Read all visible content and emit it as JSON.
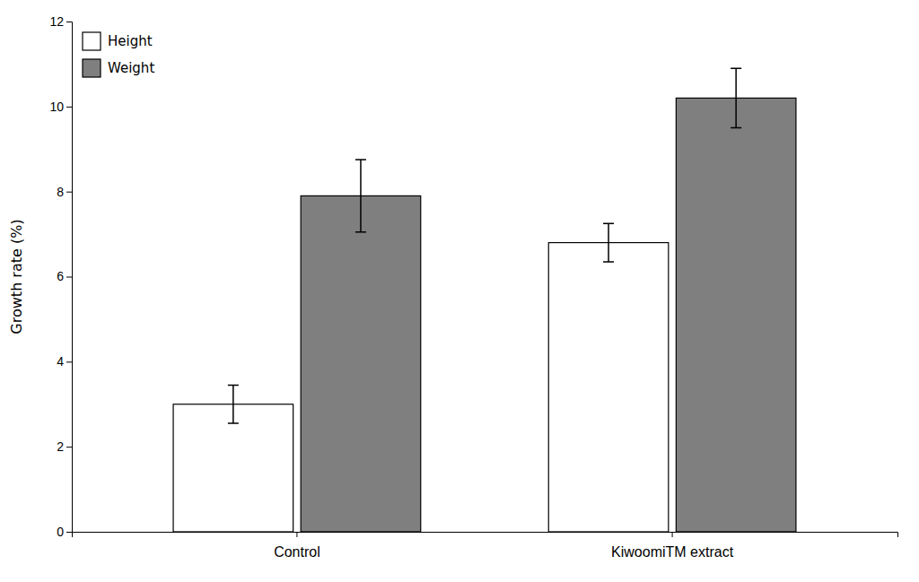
{
  "chart_data": {
    "type": "bar",
    "categories": [
      "Control",
      "KiwoomiTM extract"
    ],
    "series": [
      {
        "name": "Height",
        "color": "#ffffff",
        "values": [
          3.0,
          6.8
        ],
        "errors": [
          0.45,
          0.45
        ]
      },
      {
        "name": "Weight",
        "color": "#7f7f7f",
        "values": [
          7.9,
          10.2
        ],
        "errors": [
          0.85,
          0.7
        ]
      }
    ],
    "y_label": "Growth rate (%)",
    "ylim": [
      0,
      12
    ],
    "yticks": [
      0,
      2,
      4,
      6,
      8,
      10,
      12
    ],
    "legend": "upper-left",
    "grid": false
  }
}
